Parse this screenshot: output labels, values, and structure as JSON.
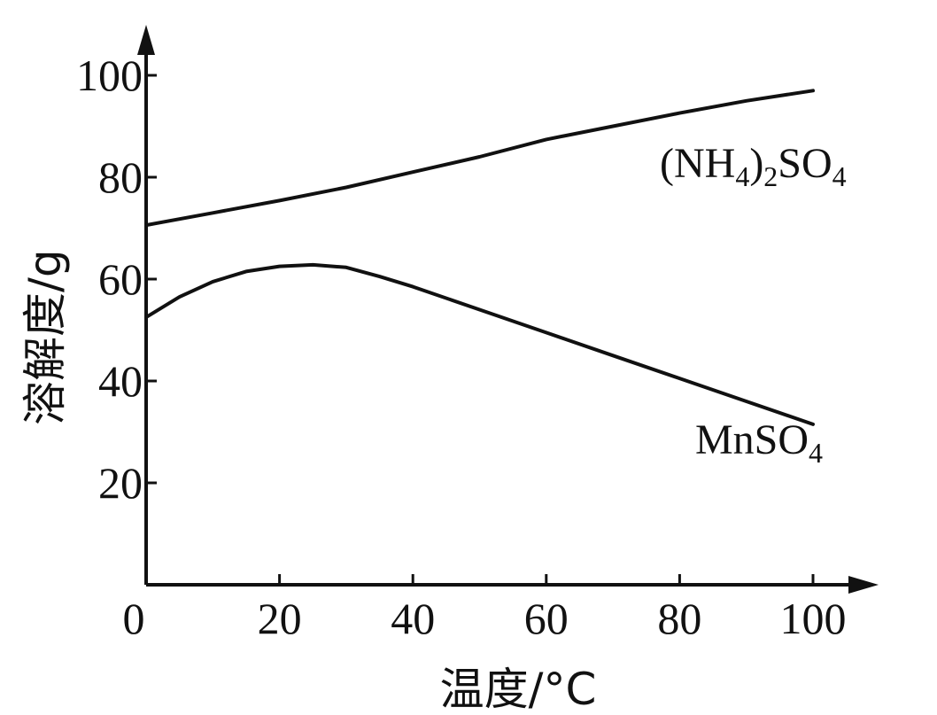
{
  "chart_data": {
    "type": "line",
    "title": "",
    "xlabel": "温度/°C",
    "ylabel": "溶解度/g",
    "xlim": [
      0,
      100
    ],
    "ylim": [
      0,
      100
    ],
    "x_ticks": [
      "0",
      "20",
      "40",
      "60",
      "80",
      "100"
    ],
    "y_ticks": [
      "20",
      "40",
      "60",
      "80",
      "100"
    ],
    "grid": false,
    "legend": "none",
    "series": [
      {
        "name": "(NH4)2SO4",
        "label_main": "(NH",
        "label_sub1": "4",
        "label_mid": ")",
        "label_sub2": "2",
        "label_tail": "SO",
        "label_sub3": "4",
        "x": [
          0,
          10,
          20,
          30,
          40,
          50,
          60,
          70,
          80,
          90,
          100
        ],
        "y": [
          70.6,
          73,
          75.4,
          78,
          81,
          84,
          87.4,
          90,
          92.6,
          95,
          97
        ]
      },
      {
        "name": "MnSO4",
        "label_main": "MnSO",
        "label_sub1": "4",
        "x": [
          0,
          5,
          10,
          15,
          20,
          25,
          30,
          35,
          40,
          50,
          60,
          70,
          80,
          90,
          100
        ],
        "y": [
          52.5,
          56.5,
          59.5,
          61.5,
          62.5,
          62.8,
          62.3,
          60.5,
          58.5,
          54,
          49.5,
          45,
          40.5,
          36,
          31.5
        ]
      }
    ],
    "colors": {
      "line": "#111111",
      "axis": "#111111"
    }
  }
}
